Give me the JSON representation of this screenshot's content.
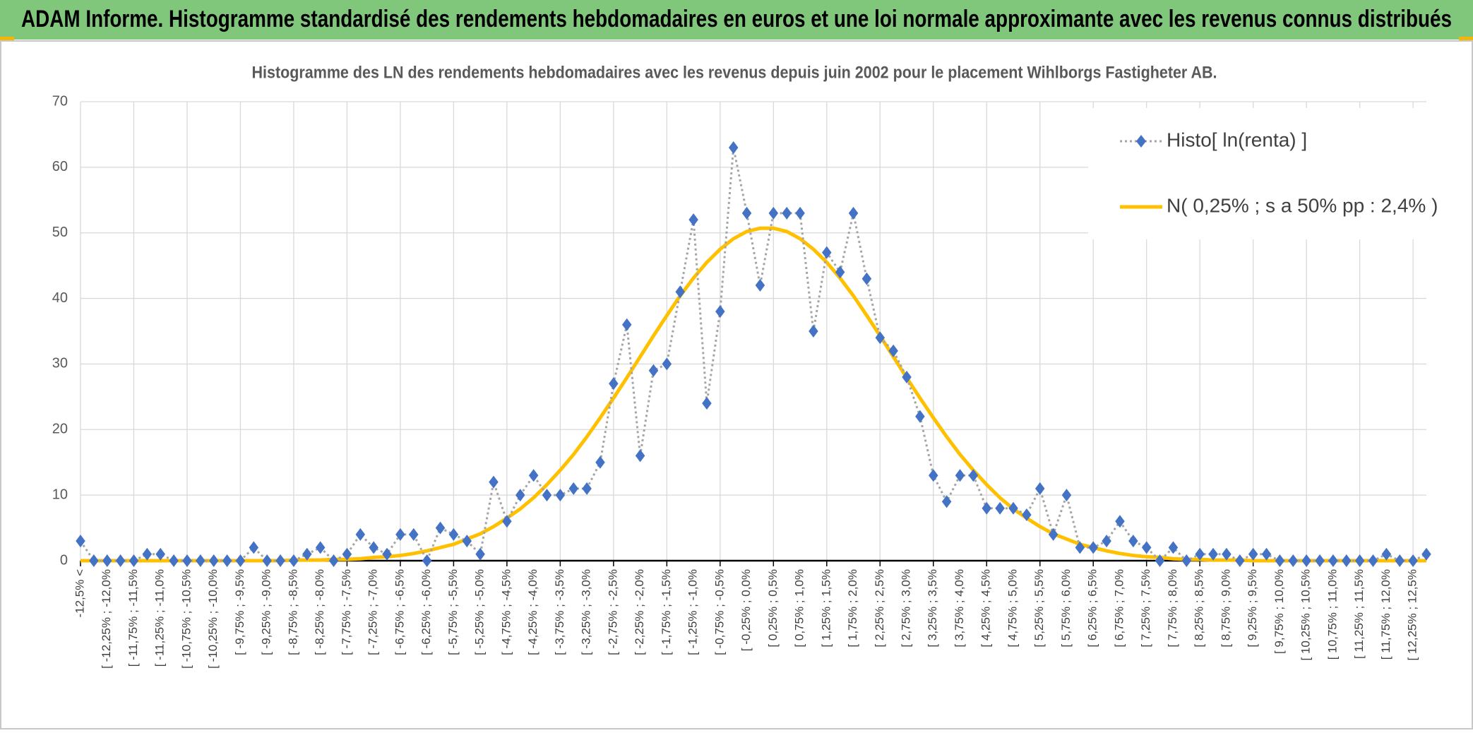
{
  "header": {
    "title": "ADAM Informe. Histogramme standardisé des rendements hebdomadaires en euros et une loi normale approximante avec les revenus connus distribués"
  },
  "chart_data": {
    "type": "line",
    "title": "Histogramme des LN des rendements hebdomadaires avec les revenus depuis juin 2002 pour le placement Wihlborgs Fastigheter AB.",
    "categories": [
      "-12,5% <",
      null,
      "[ -12,25% ; -12,0%",
      null,
      "[ -11,75% ; -11,5%",
      null,
      "[ -11,25% ; -11,0%",
      null,
      "[ -10,75% ; -10,5%",
      null,
      "[ -10,25% ; -10,0%",
      null,
      "[ -9,75% ; -9,5%",
      null,
      "[ -9,25% ; -9,0%",
      null,
      "[ -8,75% ; -8,5%",
      null,
      "[ -8,25% ; -8,0%",
      null,
      "[ -7,75% ; -7,5%",
      null,
      "[ -7,25% ; -7,0%",
      null,
      "[ -6,75% ; -6,5%",
      null,
      "[ -6,25% ; -6,0%",
      null,
      "[ -5,75% ; -5,5%",
      null,
      "[ -5,25% ; -5,0%",
      null,
      "[ -4,75% ; -4,5%",
      null,
      "[ -4,25% ; -4,0%",
      null,
      "[ -3,75% ; -3,5%",
      null,
      "[ -3,25% ; -3,0%",
      null,
      "[ -2,75% ; -2,5%",
      null,
      "[ -2,25% ; -2,0%",
      null,
      "[ -1,75% ; -1,5%",
      null,
      "[ -1,25% ; -1,0%",
      null,
      "[ -0,75% ; -0,5%",
      null,
      "[ -0,25% ; 0,0%",
      null,
      "[ 0,25% ; 0,5%",
      null,
      "[ 0,75% ; 1,0%",
      null,
      "[ 1,25% ; 1,5%",
      null,
      "[ 1,75% ; 2,0%",
      null,
      "[ 2,25% ; 2,5%",
      null,
      "[ 2,75% ; 3,0%",
      null,
      "[ 3,25% ; 3,5%",
      null,
      "[ 3,75% ; 4,0%",
      null,
      "[ 4,25% ; 4,5%",
      null,
      "[ 4,75% ; 5,0%",
      null,
      "[ 5,25% ; 5,5%",
      null,
      "[ 5,75% ; 6,0%",
      null,
      "[ 6,25% ; 6,5%",
      null,
      "[ 6,75% ; 7,0%",
      null,
      "[ 7,25% ; 7,5%",
      null,
      "[ 7,75% ; 8,0%",
      null,
      "[ 8,25% ; 8,5%",
      null,
      "[ 8,75% ; 9,0%",
      null,
      "[ 9,25% ; 9,5%",
      null,
      "[ 9,75% ; 10,0%",
      null,
      "[ 10,25% ; 10,5%",
      null,
      "[ 10,75% ; 11,0%",
      null,
      "[ 11,25% ; 11,5%",
      null,
      "[ 11,75% ; 12,0%",
      null,
      "[ 12,25% ; 12,5%",
      null
    ],
    "series": [
      {
        "name": "Histo[ ln(renta) ]",
        "color": "#4472c4",
        "line_color": "#a5a5a5",
        "marker": "diamond",
        "values": [
          3,
          0,
          0,
          0,
          0,
          1,
          1,
          0,
          0,
          0,
          0,
          0,
          0,
          2,
          0,
          0,
          0,
          1,
          2,
          0,
          1,
          4,
          2,
          1,
          4,
          4,
          0,
          5,
          4,
          3,
          1,
          12,
          6,
          10,
          13,
          10,
          10,
          11,
          11,
          15,
          27,
          36,
          16,
          29,
          30,
          41,
          52,
          24,
          38,
          63,
          53,
          42,
          53,
          53,
          53,
          35,
          47,
          44,
          53,
          43,
          34,
          32,
          28,
          22,
          13,
          9,
          13,
          13,
          8,
          8,
          8,
          7,
          11,
          4,
          10,
          2,
          2,
          3,
          6,
          3,
          2,
          0,
          2,
          0,
          1,
          1,
          1,
          0,
          1,
          1,
          0,
          0,
          0,
          0,
          0,
          0,
          0,
          0,
          1,
          0,
          0,
          1
        ]
      },
      {
        "name": "N( 0,25% ; s a 50% pp : 2,4% )",
        "color": "#ffc000",
        "values": [
          0,
          0,
          0,
          0,
          0,
          0,
          0,
          0,
          0,
          0,
          0,
          0,
          0,
          0,
          0,
          0,
          0.1,
          0.1,
          0.1,
          0.2,
          0.2,
          0.3,
          0.5,
          0.6,
          0.8,
          1.1,
          1.5,
          2.0,
          2.5,
          3.3,
          4.1,
          5.2,
          6.5,
          7.9,
          9.6,
          11.6,
          13.8,
          16.2,
          18.9,
          21.8,
          24.8,
          27.9,
          31.1,
          34.3,
          37.4,
          40.4,
          43.1,
          45.5,
          47.5,
          49.1,
          50.2,
          50.7,
          50.7,
          50.2,
          49.1,
          47.5,
          45.5,
          43.1,
          40.4,
          37.4,
          34.3,
          31.1,
          27.9,
          24.8,
          21.8,
          18.9,
          16.2,
          13.8,
          11.6,
          9.6,
          7.9,
          6.5,
          5.2,
          4.1,
          3.3,
          2.5,
          2.0,
          1.5,
          1.1,
          0.8,
          0.6,
          0.5,
          0.3,
          0.2,
          0.2,
          0.1,
          0.1,
          0.1,
          0,
          0,
          0,
          0,
          0,
          0,
          0,
          0,
          0,
          0,
          0,
          0,
          0,
          0
        ]
      }
    ],
    "ylim": [
      0,
      70
    ],
    "yticks": [
      0,
      10,
      20,
      30,
      40,
      50,
      60,
      70
    ],
    "grid": true,
    "legend": "upper right"
  }
}
